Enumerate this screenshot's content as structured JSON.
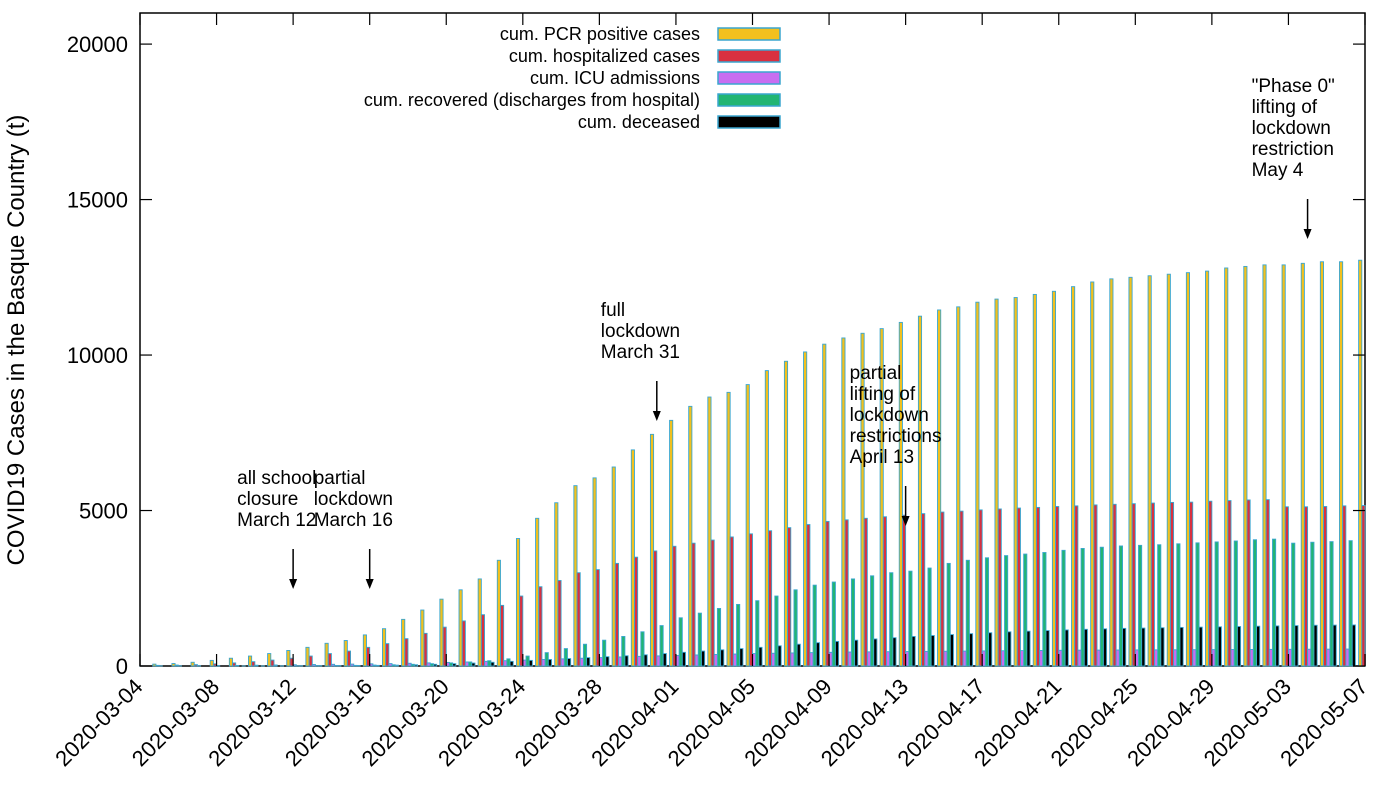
{
  "chart_data": {
    "type": "bar",
    "xlabel": "",
    "ylabel": "COVID19 Cases in the Basque Country (t)",
    "ylim": [
      0,
      21000
    ],
    "yticks": [
      0,
      5000,
      10000,
      15000,
      20000
    ],
    "x_range": [
      "2020-03-04",
      "2020-05-07"
    ],
    "x_tick_labels": [
      "2020-03-04",
      "2020-03-08",
      "2020-03-12",
      "2020-03-16",
      "2020-03-20",
      "2020-03-24",
      "2020-03-28",
      "2020-04-01",
      "2020-04-05",
      "2020-04-09",
      "2020-04-13",
      "2020-04-17",
      "2020-04-21",
      "2020-04-25",
      "2020-04-29",
      "2020-05-03",
      "2020-05-07"
    ],
    "legend_position": "top-center",
    "grid": false,
    "categories": [
      "2020-03-04",
      "2020-03-05",
      "2020-03-06",
      "2020-03-07",
      "2020-03-08",
      "2020-03-09",
      "2020-03-10",
      "2020-03-11",
      "2020-03-12",
      "2020-03-13",
      "2020-03-14",
      "2020-03-15",
      "2020-03-16",
      "2020-03-17",
      "2020-03-18",
      "2020-03-19",
      "2020-03-20",
      "2020-03-21",
      "2020-03-22",
      "2020-03-23",
      "2020-03-24",
      "2020-03-25",
      "2020-03-26",
      "2020-03-27",
      "2020-03-28",
      "2020-03-29",
      "2020-03-30",
      "2020-03-31",
      "2020-04-01",
      "2020-04-02",
      "2020-04-03",
      "2020-04-04",
      "2020-04-05",
      "2020-04-06",
      "2020-04-07",
      "2020-04-08",
      "2020-04-09",
      "2020-04-10",
      "2020-04-11",
      "2020-04-12",
      "2020-04-13",
      "2020-04-14",
      "2020-04-15",
      "2020-04-16",
      "2020-04-17",
      "2020-04-18",
      "2020-04-19",
      "2020-04-20",
      "2020-04-21",
      "2020-04-22",
      "2020-04-23",
      "2020-04-24",
      "2020-04-25",
      "2020-04-26",
      "2020-04-27",
      "2020-04-28",
      "2020-04-29",
      "2020-04-30",
      "2020-05-01",
      "2020-05-02",
      "2020-05-03",
      "2020-05-04",
      "2020-05-05",
      "2020-05-06",
      "2020-05-07"
    ],
    "series": [
      {
        "name": "cum. PCR positive cases",
        "color": "#f2c01e",
        "values": [
          45,
          60,
          80,
          120,
          180,
          250,
          320,
          400,
          500,
          600,
          730,
          820,
          1000,
          1200,
          1500,
          1800,
          2150,
          2450,
          2800,
          3400,
          4100,
          4750,
          5250,
          5800,
          6050,
          6400,
          6950,
          7450,
          7900,
          8350,
          8650,
          8800,
          9050,
          9500,
          9800,
          10100,
          10350,
          10550,
          10700,
          10850,
          11050,
          11250,
          11450,
          11550,
          11700,
          11800,
          11850,
          11950,
          12050,
          12200,
          12350,
          12450,
          12500,
          12550,
          12600,
          12650,
          12700,
          12800,
          12850,
          12900,
          12900,
          12950,
          13000,
          13000,
          13050
        ]
      },
      {
        "name": "cum. hospitalized cases",
        "color": "#d93040",
        "values": [
          15,
          20,
          30,
          45,
          70,
          100,
          140,
          190,
          250,
          320,
          400,
          480,
          600,
          720,
          880,
          1050,
          1250,
          1450,
          1650,
          1950,
          2250,
          2550,
          2750,
          3000,
          3100,
          3300,
          3500,
          3700,
          3850,
          3950,
          4050,
          4150,
          4250,
          4350,
          4450,
          4550,
          4650,
          4700,
          4750,
          4800,
          4850,
          4900,
          4950,
          4980,
          5020,
          5050,
          5080,
          5100,
          5130,
          5150,
          5180,
          5200,
          5220,
          5240,
          5260,
          5270,
          5300,
          5320,
          5340,
          5350,
          5120,
          5120,
          5130,
          5150,
          5160
        ]
      },
      {
        "name": "cum. ICU admissions",
        "color": "#c86ef0",
        "values": [
          3,
          4,
          5,
          8,
          12,
          18,
          25,
          32,
          40,
          48,
          55,
          62,
          70,
          78,
          88,
          100,
          115,
          130,
          150,
          170,
          190,
          210,
          230,
          250,
          270,
          290,
          310,
          325,
          340,
          355,
          370,
          385,
          400,
          410,
          420,
          430,
          440,
          450,
          455,
          460,
          465,
          470,
          475,
          480,
          485,
          490,
          495,
          500,
          505,
          510,
          512,
          515,
          518,
          520,
          522,
          525,
          527,
          530,
          532,
          535,
          537,
          540,
          542,
          545,
          547
        ]
      },
      {
        "name": "cum. recovered (discharges from hospital)",
        "color": "#22b573",
        "values": [
          0,
          0,
          0,
          0,
          0,
          0,
          0,
          0,
          5,
          10,
          15,
          20,
          30,
          40,
          55,
          75,
          100,
          130,
          170,
          230,
          320,
          430,
          560,
          700,
          830,
          950,
          1100,
          1300,
          1550,
          1700,
          1850,
          1980,
          2100,
          2250,
          2450,
          2600,
          2700,
          2800,
          2900,
          3000,
          3050,
          3150,
          3300,
          3400,
          3480,
          3550,
          3600,
          3650,
          3720,
          3780,
          3820,
          3860,
          3880,
          3900,
          3930,
          3960,
          3990,
          4020,
          4060,
          4080,
          3950,
          3980,
          4000,
          4030,
          4050
        ]
      },
      {
        "name": "cum. deceased",
        "color": "#000000",
        "values": [
          0,
          0,
          0,
          0,
          0,
          1,
          2,
          4,
          6,
          9,
          12,
          16,
          20,
          28,
          40,
          55,
          75,
          95,
          120,
          150,
          180,
          210,
          240,
          270,
          300,
          330,
          360,
          400,
          440,
          480,
          520,
          560,
          600,
          650,
          700,
          750,
          790,
          830,
          870,
          910,
          950,
          980,
          1010,
          1040,
          1070,
          1100,
          1120,
          1140,
          1160,
          1180,
          1195,
          1210,
          1220,
          1230,
          1240,
          1250,
          1260,
          1270,
          1280,
          1290,
          1300,
          1310,
          1315,
          1320,
          1325
        ]
      }
    ],
    "annotations": [
      {
        "lines": [
          "all school",
          "closure",
          "March 12"
        ],
        "date": "2020-03-12"
      },
      {
        "lines": [
          "partial",
          "lockdown",
          "March 16"
        ],
        "date": "2020-03-16"
      },
      {
        "lines": [
          "full",
          "lockdown",
          "March 31"
        ],
        "date": "2020-03-31"
      },
      {
        "lines": [
          "partial",
          "lifting of",
          "lockdown",
          "restrictions",
          "April 13"
        ],
        "date": "2020-04-13"
      },
      {
        "lines": [
          "\"Phase 0\"",
          "lifting of",
          "lockdown",
          "restriction",
          "May 4"
        ],
        "date": "2020-05-04"
      }
    ]
  }
}
